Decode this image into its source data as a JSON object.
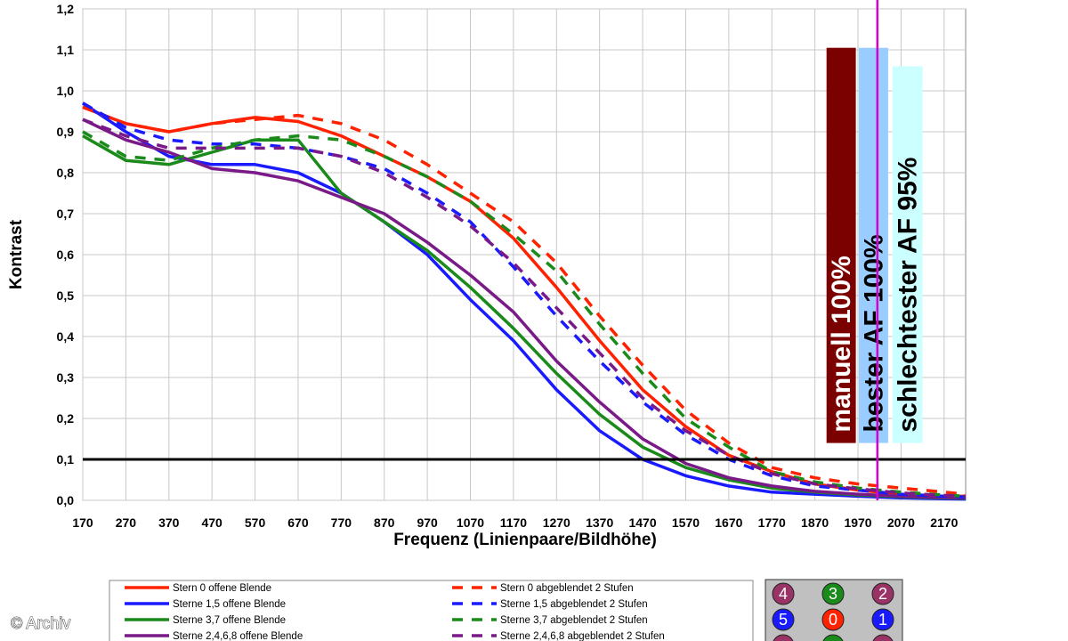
{
  "chart_data": {
    "type": "line",
    "xlabel": "Frequenz (Linienpaare/Bildhöhe)",
    "ylabel": "Kontrast",
    "xlim": [
      170,
      2220
    ],
    "ylim": [
      0,
      1.2
    ],
    "x_ticks": [
      "170",
      "270",
      "370",
      "470",
      "570",
      "670",
      "770",
      "870",
      "970",
      "1070",
      "1170",
      "1270",
      "1370",
      "1470",
      "1570",
      "1670",
      "1770",
      "1870",
      "1970",
      "2070",
      "2170"
    ],
    "y_ticks": [
      "0,0",
      "0,1",
      "0,2",
      "0,3",
      "0,4",
      "0,5",
      "0,6",
      "0,7",
      "0,8",
      "0,9",
      "1,0",
      "1,1",
      "1,2"
    ],
    "grid": true,
    "reference_line": {
      "y": 0.1,
      "color": "#000000"
    },
    "marker_line": {
      "x": 2015,
      "color": "#d400d4"
    },
    "series": [
      {
        "name": "Stern 0 offene Blende",
        "color": "#ff2200",
        "dash": false,
        "x": [
          170,
          270,
          370,
          470,
          570,
          670,
          770,
          870,
          970,
          1070,
          1170,
          1270,
          1370,
          1470,
          1570,
          1670,
          1770,
          1870,
          1970,
          2070,
          2170,
          2220
        ],
        "y": [
          0.96,
          0.92,
          0.9,
          0.92,
          0.935,
          0.925,
          0.89,
          0.84,
          0.79,
          0.73,
          0.64,
          0.52,
          0.39,
          0.27,
          0.18,
          0.11,
          0.07,
          0.04,
          0.025,
          0.015,
          0.01,
          0.01
        ]
      },
      {
        "name": "Sterne 1,5 offene Blende",
        "color": "#1a1aff",
        "dash": false,
        "x": [
          170,
          270,
          370,
          470,
          570,
          670,
          770,
          870,
          970,
          1070,
          1170,
          1270,
          1370,
          1470,
          1570,
          1670,
          1770,
          1870,
          1970,
          2070,
          2170,
          2220
        ],
        "y": [
          0.97,
          0.9,
          0.84,
          0.82,
          0.82,
          0.8,
          0.75,
          0.68,
          0.6,
          0.49,
          0.39,
          0.27,
          0.17,
          0.1,
          0.06,
          0.035,
          0.02,
          0.015,
          0.01,
          0.006,
          0.004,
          0.003
        ]
      },
      {
        "name": "Sterne 3,7 offene Blende",
        "color": "#1a8a1a",
        "dash": false,
        "x": [
          170,
          270,
          370,
          470,
          570,
          670,
          770,
          870,
          970,
          1070,
          1170,
          1270,
          1370,
          1470,
          1570,
          1670,
          1770,
          1870,
          1970,
          2070,
          2170,
          2220
        ],
        "y": [
          0.89,
          0.83,
          0.82,
          0.85,
          0.88,
          0.88,
          0.75,
          0.68,
          0.61,
          0.52,
          0.42,
          0.31,
          0.21,
          0.13,
          0.08,
          0.05,
          0.03,
          0.02,
          0.013,
          0.009,
          0.006,
          0.005
        ]
      },
      {
        "name": "Sterne 2,4,6,8 offene Blende",
        "color": "#7a1a88",
        "dash": false,
        "x": [
          170,
          270,
          370,
          470,
          570,
          670,
          770,
          870,
          970,
          1070,
          1170,
          1270,
          1370,
          1470,
          1570,
          1670,
          1770,
          1870,
          1970,
          2070,
          2170,
          2220
        ],
        "y": [
          0.93,
          0.88,
          0.85,
          0.81,
          0.8,
          0.78,
          0.74,
          0.7,
          0.63,
          0.55,
          0.46,
          0.34,
          0.24,
          0.15,
          0.09,
          0.055,
          0.035,
          0.022,
          0.015,
          0.01,
          0.007,
          0.006
        ]
      },
      {
        "name": "Stern 0 abgeblendet 2 Stufen",
        "color": "#ff2200",
        "dash": true,
        "x": [
          170,
          270,
          370,
          470,
          570,
          670,
          770,
          870,
          970,
          1070,
          1170,
          1270,
          1370,
          1470,
          1570,
          1670,
          1770,
          1870,
          1970,
          2070,
          2170,
          2220
        ],
        "y": [
          0.96,
          0.92,
          0.9,
          0.92,
          0.93,
          0.94,
          0.92,
          0.88,
          0.82,
          0.75,
          0.68,
          0.58,
          0.45,
          0.33,
          0.22,
          0.14,
          0.08,
          0.055,
          0.04,
          0.03,
          0.02,
          0.015
        ]
      },
      {
        "name": "Sterne 1,5 abgeblendet 2 Stufen",
        "color": "#1a1aff",
        "dash": true,
        "x": [
          170,
          270,
          370,
          470,
          570,
          670,
          770,
          870,
          970,
          1070,
          1170,
          1270,
          1370,
          1470,
          1570,
          1670,
          1770,
          1870,
          1970,
          2070,
          2170,
          2220
        ],
        "y": [
          0.97,
          0.91,
          0.88,
          0.87,
          0.87,
          0.86,
          0.84,
          0.81,
          0.75,
          0.68,
          0.57,
          0.45,
          0.34,
          0.24,
          0.16,
          0.1,
          0.06,
          0.035,
          0.025,
          0.015,
          0.01,
          0.008
        ]
      },
      {
        "name": "Sterne 3,7 abgeblendet 2 Stufen",
        "color": "#1a8a1a",
        "dash": true,
        "x": [
          170,
          270,
          370,
          470,
          570,
          670,
          770,
          870,
          970,
          1070,
          1170,
          1270,
          1370,
          1470,
          1570,
          1670,
          1770,
          1870,
          1970,
          2070,
          2170,
          2220
        ],
        "y": [
          0.9,
          0.84,
          0.83,
          0.86,
          0.88,
          0.89,
          0.88,
          0.84,
          0.79,
          0.73,
          0.65,
          0.56,
          0.43,
          0.31,
          0.2,
          0.13,
          0.07,
          0.045,
          0.03,
          0.02,
          0.013,
          0.01
        ]
      },
      {
        "name": "Sterne 2,4,6,8 abgeblendet 2 Stufen",
        "color": "#7a1a88",
        "dash": true,
        "x": [
          170,
          270,
          370,
          470,
          570,
          670,
          770,
          870,
          970,
          1070,
          1170,
          1270,
          1370,
          1470,
          1570,
          1670,
          1770,
          1870,
          1970,
          2070,
          2170,
          2220
        ],
        "y": [
          0.93,
          0.89,
          0.86,
          0.86,
          0.86,
          0.86,
          0.84,
          0.8,
          0.74,
          0.67,
          0.58,
          0.47,
          0.36,
          0.25,
          0.17,
          0.11,
          0.065,
          0.04,
          0.028,
          0.018,
          0.012,
          0.01
        ]
      }
    ],
    "bars": [
      {
        "label": "manuell 100%",
        "value": 1.105,
        "x_from": 1897,
        "x_to": 1965,
        "color": "#7b0000",
        "text_color": "#ffffff"
      },
      {
        "label": "bester AF 100%",
        "value": 1.105,
        "x_from": 1972,
        "x_to": 2040,
        "color": "#99ccff",
        "text_color": "#000000"
      },
      {
        "label": "schlechtester AF 95%",
        "value": 1.06,
        "x_from": 2050,
        "x_to": 2120,
        "color": "#ccffff",
        "text_color": "#000000"
      }
    ]
  },
  "legend_badges": [
    {
      "label": "4",
      "color": "#993366"
    },
    {
      "label": "3",
      "color": "#1a8a1a"
    },
    {
      "label": "2",
      "color": "#993366"
    },
    {
      "label": "5",
      "color": "#1a1aff"
    },
    {
      "label": "0",
      "color": "#ff2200"
    },
    {
      "label": "1",
      "color": "#1a1aff"
    },
    {
      "label": "",
      "color": "#993366"
    },
    {
      "label": "",
      "color": "#1a8a1a"
    },
    {
      "label": "",
      "color": "#993366"
    }
  ],
  "badge_panel_color": "#c0c0c0",
  "copyright": "© Archiv"
}
